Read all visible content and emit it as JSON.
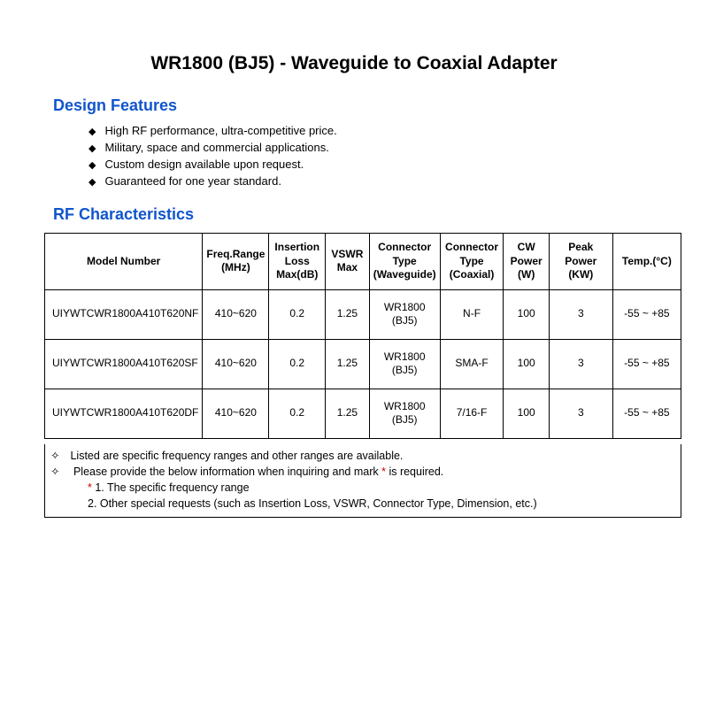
{
  "title": "WR1800 (BJ5) - Waveguide to Coaxial Adapter",
  "sections": {
    "design": "Design Features",
    "rf": "RF Characteristics"
  },
  "features": [
    "High RF performance, ultra-competitive price.",
    "Military, space and commercial applications.",
    "Custom design available upon request.",
    "Guaranteed for one year standard."
  ],
  "table": {
    "columns": [
      "Model Number",
      "Freq.Range (MHz)",
      "Insertion Loss Max(dB)",
      "VSWR Max",
      "Connector Type (Waveguide)",
      "Connector Type (Coaxial)",
      "CW Power (W)",
      "Peak Power (KW)",
      "Temp.(°C)"
    ],
    "col_widths": [
      "176px",
      "70px",
      "64px",
      "50px",
      "80px",
      "72px",
      "52px",
      "74px",
      "80px"
    ],
    "rows": [
      [
        "UIYWTCWR1800A410T620NF",
        "410~620",
        "0.2",
        "1.25",
        "WR1800 (BJ5)",
        "N-F",
        "100",
        "3",
        "-55 ~ +85"
      ],
      [
        "UIYWTCWR1800A410T620SF",
        "410~620",
        "0.2",
        "1.25",
        "WR1800 (BJ5)",
        "SMA-F",
        "100",
        "3",
        "-55 ~ +85"
      ],
      [
        "UIYWTCWR1800A410T620DF",
        "410~620",
        "0.2",
        "1.25",
        "WR1800 (BJ5)",
        "7/16-F",
        "100",
        "3",
        "-55 ~ +85"
      ]
    ]
  },
  "notes": {
    "line1": "Listed are specific frequency ranges and other ranges are available.",
    "line2a": "Please provide the below information when inquiring and mark ",
    "line2b": "*",
    "line2c": " is required.",
    "line3a": "* ",
    "line3b": "1. The specific frequency range",
    "line4": "2. Other special requests (such as Insertion Loss, VSWR, Connector Type, Dimension, etc.)"
  }
}
